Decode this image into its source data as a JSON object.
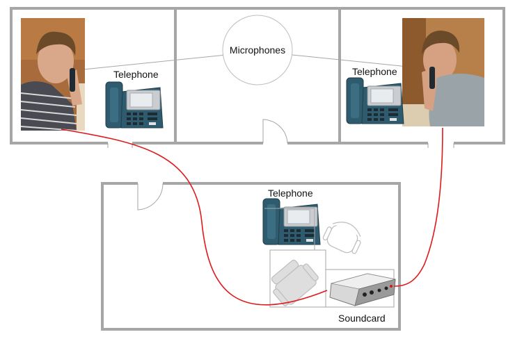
{
  "labels": {
    "telephone_left": "Telephone",
    "telephone_right": "Telephone",
    "telephone_bottom": "Telephone",
    "microphones": "Microphones",
    "soundcard": "Soundcard"
  },
  "colors": {
    "wall": "#a6a6a6",
    "cable": "#e0191c",
    "phone_body": "#2f5b6e",
    "phone_face": "#c9cdd1",
    "soundcard_body": "#d8d8d8"
  },
  "icons": {
    "person": "person-on-phone-photo",
    "phone": "desk-phone-icon",
    "soundcard": "audio-interface-icon",
    "chair": "chair-icon"
  }
}
